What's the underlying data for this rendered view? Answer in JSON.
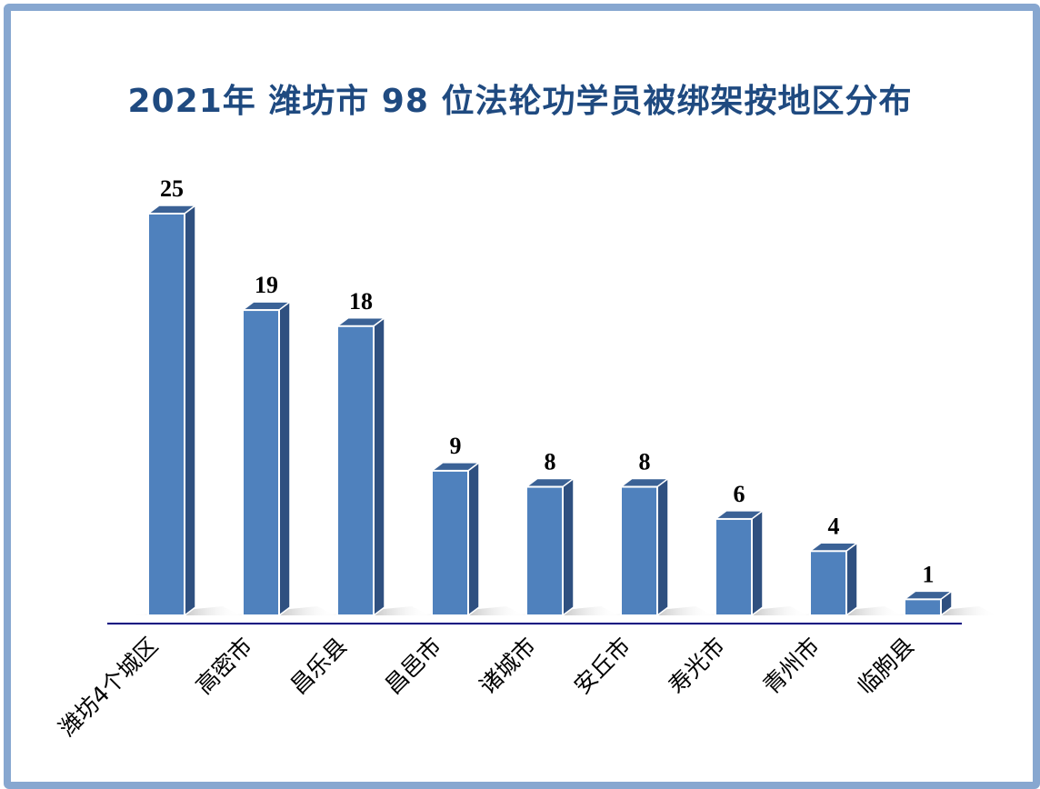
{
  "chart_data": {
    "type": "bar",
    "title": "2021年  潍坊市 98 位法轮功学员被绑架按地区分布",
    "categories": [
      "潍坊4个城区",
      "高密市",
      "昌乐县",
      "昌邑市",
      "诸城市",
      "安丘市",
      "寿光市",
      "青州市",
      "临朐县"
    ],
    "values": [
      25,
      19,
      18,
      9,
      8,
      8,
      6,
      4,
      1
    ],
    "xlabel": "",
    "ylabel": "",
    "ylim": [
      0,
      25
    ],
    "grid": false,
    "legend": "none",
    "colors": {
      "bar_front": "#4f81bd",
      "bar_top": "#3b6296",
      "bar_side": "#2f5080",
      "axis": "#000080",
      "title": "#1f4a80",
      "frame": "#87a7d0"
    }
  }
}
